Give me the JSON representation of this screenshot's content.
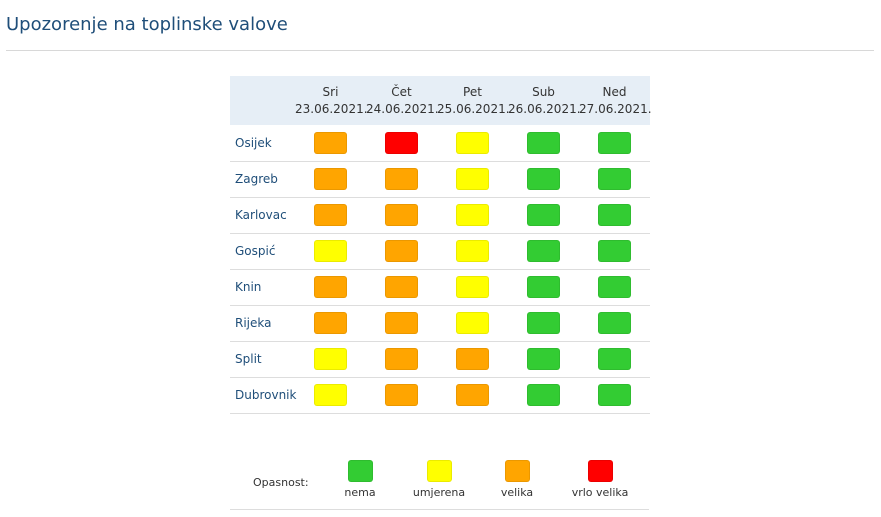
{
  "page": {
    "title": "Upozorenje na toplinske valove"
  },
  "levels": {
    "nema": {
      "label": "nema",
      "color": "#33cc33"
    },
    "umjerena": {
      "label": "umjerena",
      "color": "#ffff00"
    },
    "velika": {
      "label": "velika",
      "color": "#ffa500"
    },
    "vrlo_velika": {
      "label": "vrlo velika",
      "color": "#ff0000"
    }
  },
  "days": [
    {
      "name": "Sri",
      "date": "23.06.2021."
    },
    {
      "name": "Čet",
      "date": "24.06.2021."
    },
    {
      "name": "Pet",
      "date": "25.06.2021."
    },
    {
      "name": "Sub",
      "date": "26.06.2021."
    },
    {
      "name": "Ned",
      "date": "27.06.2021."
    }
  ],
  "cities": [
    {
      "name": "Osijek",
      "levels": [
        "velika",
        "vrlo_velika",
        "umjerena",
        "nema",
        "nema"
      ]
    },
    {
      "name": "Zagreb",
      "levels": [
        "velika",
        "velika",
        "umjerena",
        "nema",
        "nema"
      ]
    },
    {
      "name": "Karlovac",
      "levels": [
        "velika",
        "velika",
        "umjerena",
        "nema",
        "nema"
      ]
    },
    {
      "name": "Gospić",
      "levels": [
        "umjerena",
        "velika",
        "umjerena",
        "nema",
        "nema"
      ]
    },
    {
      "name": "Knin",
      "levels": [
        "velika",
        "velika",
        "umjerena",
        "nema",
        "nema"
      ]
    },
    {
      "name": "Rijeka",
      "levels": [
        "velika",
        "velika",
        "umjerena",
        "nema",
        "nema"
      ]
    },
    {
      "name": "Split",
      "levels": [
        "umjerena",
        "velika",
        "velika",
        "nema",
        "nema"
      ]
    },
    {
      "name": "Dubrovnik",
      "levels": [
        "umjerena",
        "velika",
        "velika",
        "nema",
        "nema"
      ]
    }
  ],
  "legend": {
    "label": "Opasnost:",
    "items": [
      "nema",
      "umjerena",
      "velika",
      "vrlo_velika"
    ]
  }
}
